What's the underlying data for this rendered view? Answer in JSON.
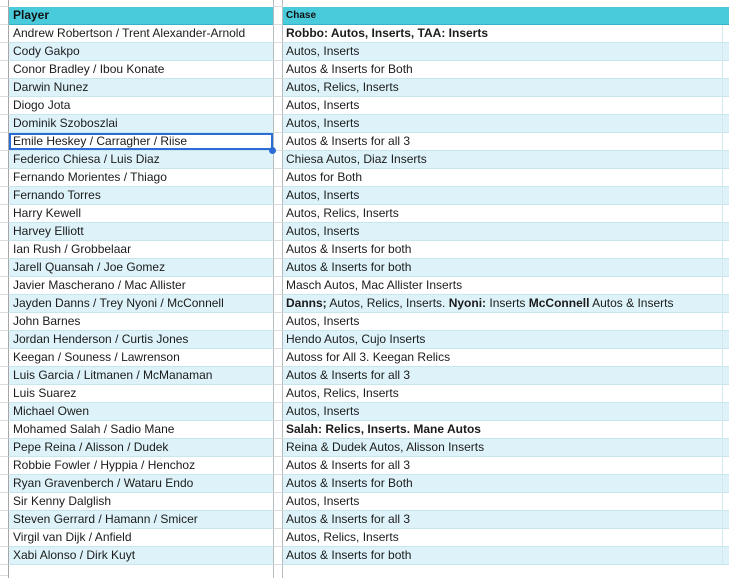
{
  "table": {
    "columns": [
      {
        "label": "Player"
      },
      {
        "label": "Chase"
      }
    ],
    "rows": [
      {
        "player": "Andrew Robertson / Trent Alexander-Arnold",
        "chase": [
          {
            "text": "Robbo: Autos, Inserts, TAA: Inserts",
            "bold": true
          }
        ]
      },
      {
        "player": "Cody Gakpo",
        "chase": [
          {
            "text": "Autos, Inserts",
            "bold": false
          }
        ]
      },
      {
        "player": "Conor Bradley / Ibou Konate",
        "chase": [
          {
            "text": "Autos & Inserts for Both",
            "bold": false
          }
        ]
      },
      {
        "player": "Darwin Nunez",
        "chase": [
          {
            "text": "Autos, Relics, Inserts",
            "bold": false
          }
        ]
      },
      {
        "player": "Diogo Jota",
        "chase": [
          {
            "text": "Autos, Inserts",
            "bold": false
          }
        ]
      },
      {
        "player": "Dominik Szoboszlai",
        "chase": [
          {
            "text": "Autos, Inserts",
            "bold": false
          }
        ]
      },
      {
        "player": "Emile Heskey / Carragher / Riise",
        "chase": [
          {
            "text": "Autos & Inserts for all 3",
            "bold": false
          }
        ]
      },
      {
        "player": "Federico Chiesa / Luis Diaz",
        "chase": [
          {
            "text": "Chiesa Autos, Diaz Inserts",
            "bold": false
          }
        ]
      },
      {
        "player": "Fernando Morientes / Thiago",
        "chase": [
          {
            "text": "Autos for Both",
            "bold": false
          }
        ]
      },
      {
        "player": "Fernando Torres",
        "chase": [
          {
            "text": "Autos, Inserts",
            "bold": false
          }
        ]
      },
      {
        "player": "Harry Kewell",
        "chase": [
          {
            "text": "Autos, Relics, Inserts",
            "bold": false
          }
        ]
      },
      {
        "player": "Harvey Elliott",
        "chase": [
          {
            "text": "Autos, Inserts",
            "bold": false
          }
        ]
      },
      {
        "player": "Ian Rush / Grobbelaar",
        "chase": [
          {
            "text": "Autos & Inserts for both",
            "bold": false
          }
        ]
      },
      {
        "player": "Jarell Quansah / Joe Gomez",
        "chase": [
          {
            "text": "Autos & Inserts for both",
            "bold": false
          }
        ]
      },
      {
        "player": "Javier Mascherano / Mac Allister",
        "chase": [
          {
            "text": "Masch Autos, Mac Allister Inserts",
            "bold": false
          }
        ]
      },
      {
        "player": "Jayden Danns / Trey Nyoni / McConnell",
        "chase": [
          {
            "text": "Danns;",
            "bold": true
          },
          {
            "text": " Autos, Relics, Inserts. ",
            "bold": false
          },
          {
            "text": "Nyoni:",
            "bold": true
          },
          {
            "text": " Inserts ",
            "bold": false
          },
          {
            "text": "McConnell",
            "bold": true
          },
          {
            "text": " Autos & Inserts",
            "bold": false
          }
        ]
      },
      {
        "player": "John Barnes",
        "chase": [
          {
            "text": "Autos, Inserts",
            "bold": false
          }
        ]
      },
      {
        "player": "Jordan Henderson / Curtis Jones",
        "chase": [
          {
            "text": "Hendo Autos, Cujo Inserts",
            "bold": false
          }
        ]
      },
      {
        "player": "Keegan / Souness / Lawrenson",
        "chase": [
          {
            "text": "Autoss for All 3. Keegan Relics",
            "bold": false
          }
        ]
      },
      {
        "player": "Luis Garcia / Litmanen / McManaman",
        "chase": [
          {
            "text": "Autos & Inserts for all 3",
            "bold": false
          }
        ]
      },
      {
        "player": "Luis Suarez",
        "chase": [
          {
            "text": "Autos, Relics, Inserts",
            "bold": false
          }
        ]
      },
      {
        "player": "Michael Owen",
        "chase": [
          {
            "text": "Autos, Inserts",
            "bold": false
          }
        ]
      },
      {
        "player": "Mohamed Salah / Sadio Mane",
        "chase": [
          {
            "text": "Salah: Relics, Inserts. Mane Autos",
            "bold": true
          }
        ]
      },
      {
        "player": "Pepe Reina / Alisson / Dudek",
        "chase": [
          {
            "text": "Reina & Dudek Autos, Alisson Inserts",
            "bold": false
          }
        ]
      },
      {
        "player": "Robbie Fowler / Hyppia / Henchoz",
        "chase": [
          {
            "text": "Autos & Inserts for all 3",
            "bold": false
          }
        ]
      },
      {
        "player": "Ryan Gravenberch / Wataru Endo",
        "chase": [
          {
            "text": "Autos & Inserts for Both",
            "bold": false
          }
        ]
      },
      {
        "player": "Sir Kenny Dalglish",
        "chase": [
          {
            "text": "Autos, Inserts",
            "bold": false
          }
        ]
      },
      {
        "player": "Steven Gerrard / Hamann / Smicer",
        "chase": [
          {
            "text": "Autos & Inserts for all 3",
            "bold": false
          }
        ]
      },
      {
        "player": "Virgil van Dijk / Anfield",
        "chase": [
          {
            "text": "Autos, Relics, Inserts",
            "bold": false
          }
        ]
      },
      {
        "player": "Xabi Alonso / Dirk Kuyt",
        "chase": [
          {
            "text": "Autos & Inserts for both",
            "bold": false
          }
        ]
      }
    ],
    "selection": {
      "row_index": 6,
      "column": "player",
      "value": "Emile Heskey / Carragher / Riise"
    }
  },
  "colors": {
    "header_bg": "#49cbdc",
    "header_line": "#2fb3c6",
    "band_bg": "#def3f9",
    "row_line": "#c9e5ed",
    "grid_line": "#dcdcdc",
    "strip_border": "#b5bdc0",
    "strip_border_dark": "#a6a6a6",
    "faint_line": "#d2e8ef",
    "selection": "#2c6cd6",
    "text": "#1b1b1b"
  }
}
